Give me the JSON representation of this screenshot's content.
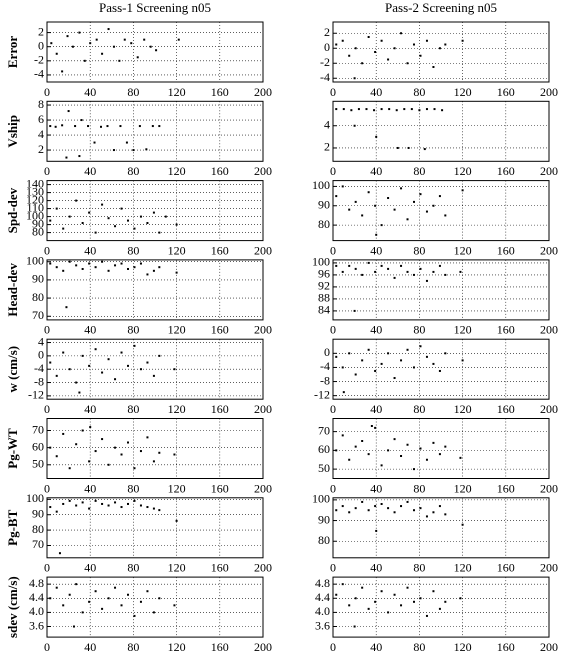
{
  "chart_data": [
    {
      "type": "scatter",
      "title": "Pass-1 Screening n05",
      "ylabel": "Error",
      "xlim": [
        0,
        200
      ],
      "xticks": [
        0,
        40,
        80,
        120,
        160,
        200
      ],
      "ylim": [
        -5,
        3.5
      ],
      "yticks": [
        -4,
        -2,
        0,
        2
      ],
      "grid": true,
      "color": "#000000",
      "x": [
        4,
        9,
        14,
        19,
        24,
        30,
        35,
        40,
        46,
        51,
        57,
        62,
        67,
        72,
        78,
        84,
        90,
        96,
        101,
        122
      ],
      "y": [
        0.5,
        -1,
        -3.5,
        1.5,
        0,
        2,
        -2,
        0.5,
        1,
        -1,
        2.5,
        0,
        -2,
        1,
        0.5,
        -1.5,
        1,
        0,
        -0.5,
        1
      ]
    },
    {
      "type": "scatter",
      "ylabel": "Vship",
      "xlim": [
        0,
        200
      ],
      "xticks": [
        0,
        40,
        80,
        120,
        160,
        200
      ],
      "ylim": [
        0.5,
        8.5
      ],
      "yticks": [
        2,
        4,
        6,
        8
      ],
      "grid": true,
      "color": "#000000",
      "x": [
        3,
        8,
        14,
        20,
        26,
        32,
        38,
        44,
        50,
        56,
        62,
        68,
        74,
        80,
        86,
        92,
        98,
        104,
        18,
        30
      ],
      "y": [
        5.2,
        5.1,
        5.3,
        7.2,
        5.2,
        6,
        5.2,
        3,
        5.1,
        5.2,
        2,
        5.2,
        3,
        2,
        5.2,
        2.1,
        5.2,
        5.2,
        1,
        1.2
      ]
    },
    {
      "type": "scatter",
      "ylabel": "Spd-dev",
      "xlim": [
        0,
        200
      ],
      "xticks": [
        0,
        40,
        80,
        120,
        160,
        200
      ],
      "ylim": [
        70,
        145
      ],
      "yticks": [
        80,
        90,
        100,
        110,
        120,
        130,
        140
      ],
      "grid": true,
      "color": "#000000",
      "x": [
        3,
        9,
        15,
        21,
        27,
        33,
        39,
        45,
        51,
        57,
        63,
        69,
        75,
        81,
        87,
        93,
        99,
        104,
        120,
        110
      ],
      "y": [
        95,
        110,
        85,
        100,
        120,
        92,
        105,
        80,
        115,
        98,
        88,
        110,
        95,
        85,
        100,
        92,
        105,
        80,
        90,
        100
      ]
    },
    {
      "type": "scatter",
      "ylabel": "Head-dev",
      "xlim": [
        0,
        200
      ],
      "xticks": [
        0,
        40,
        80,
        120,
        160,
        200
      ],
      "ylim": [
        68,
        101
      ],
      "yticks": [
        70,
        80,
        90,
        100
      ],
      "grid": true,
      "color": "#000000",
      "x": [
        3,
        9,
        15,
        21,
        27,
        33,
        39,
        45,
        51,
        57,
        63,
        69,
        75,
        81,
        87,
        93,
        99,
        104,
        120,
        18
      ],
      "y": [
        99,
        97,
        95,
        100,
        98,
        96,
        99,
        97,
        100,
        95,
        98,
        99,
        96,
        97,
        99,
        93,
        95,
        97,
        94,
        75
      ]
    },
    {
      "type": "scatter",
      "ylabel": "w (cm/s)",
      "xlim": [
        0,
        200
      ],
      "xticks": [
        0,
        40,
        80,
        120,
        160,
        200
      ],
      "ylim": [
        -13,
        5
      ],
      "yticks": [
        -12,
        -8,
        -4,
        0,
        4
      ],
      "grid": true,
      "color": "#000000",
      "x": [
        3,
        9,
        15,
        21,
        27,
        33,
        39,
        45,
        51,
        57,
        63,
        69,
        75,
        81,
        87,
        93,
        99,
        104,
        118,
        30
      ],
      "y": [
        -2,
        -6,
        1,
        -4,
        -8,
        0,
        -3,
        2,
        -5,
        -1,
        -7,
        1,
        -3,
        3,
        -4,
        -2,
        -6,
        0,
        -4,
        -11
      ]
    },
    {
      "type": "scatter",
      "ylabel": "Pg-WT",
      "xlim": [
        0,
        200
      ],
      "xticks": [
        0,
        40,
        80,
        120,
        160,
        200
      ],
      "ylim": [
        42,
        77
      ],
      "yticks": [
        50,
        60,
        70
      ],
      "grid": true,
      "color": "#000000",
      "x": [
        3,
        9,
        15,
        21,
        27,
        33,
        39,
        45,
        51,
        57,
        63,
        69,
        75,
        81,
        87,
        93,
        99,
        104,
        118,
        40
      ],
      "y": [
        60,
        55,
        68,
        48,
        62,
        70,
        52,
        58,
        65,
        50,
        60,
        56,
        63,
        48,
        58,
        66,
        52,
        57,
        56,
        72
      ]
    },
    {
      "type": "scatter",
      "ylabel": "Pg-BT",
      "xlim": [
        0,
        200
      ],
      "xticks": [
        0,
        40,
        80,
        120,
        160,
        200
      ],
      "ylim": [
        62,
        101
      ],
      "yticks": [
        70,
        80,
        90,
        100
      ],
      "grid": true,
      "color": "#000000",
      "x": [
        3,
        9,
        15,
        21,
        27,
        33,
        39,
        45,
        51,
        57,
        63,
        69,
        75,
        81,
        87,
        93,
        99,
        104,
        120,
        12
      ],
      "y": [
        95,
        92,
        97,
        99,
        96,
        98,
        94,
        99,
        97,
        96,
        98,
        95,
        97,
        99,
        96,
        95,
        94,
        93,
        86,
        65
      ]
    },
    {
      "type": "scatter",
      "ylabel": "sdev (cm/s)",
      "xlim": [
        0,
        200
      ],
      "xticks": [
        0,
        40,
        80,
        120,
        160,
        200
      ],
      "ylim": [
        3.3,
        5
      ],
      "yticks": [
        3.6,
        {
          "value": 4,
          "label": "4.0"
        },
        4.4,
        4.8
      ],
      "grid": true,
      "color": "#000000",
      "x": [
        3,
        9,
        15,
        21,
        27,
        33,
        39,
        45,
        51,
        57,
        63,
        69,
        75,
        81,
        87,
        93,
        99,
        104,
        118,
        25
      ],
      "y": [
        4.4,
        4.7,
        4.2,
        4.5,
        4.8,
        4.0,
        4.3,
        4.6,
        4.1,
        4.4,
        4.7,
        4.2,
        4.5,
        3.9,
        4.3,
        4.6,
        4.0,
        4.4,
        4.2,
        3.6
      ]
    },
    {
      "type": "scatter",
      "title": "Pass-2 Screening n05",
      "xlim": [
        0,
        200
      ],
      "xticks": [
        0,
        40,
        80,
        120,
        160,
        200
      ],
      "ylim": [
        -4.5,
        3.5
      ],
      "yticks": [
        -4,
        -2,
        0,
        2
      ],
      "grid": true,
      "color": "#000000",
      "x": [
        3,
        9,
        15,
        21,
        27,
        33,
        39,
        45,
        51,
        57,
        63,
        69,
        75,
        81,
        87,
        93,
        99,
        104,
        120,
        20
      ],
      "y": [
        0.5,
        1,
        -1,
        0,
        -2,
        1.5,
        -0.5,
        1,
        -1.5,
        0,
        2,
        -2,
        0.5,
        -1,
        1,
        -2.5,
        0,
        0.5,
        1,
        -4
      ]
    },
    {
      "type": "scatter",
      "xlim": [
        0,
        200
      ],
      "xticks": [
        0,
        40,
        80,
        120,
        160,
        200
      ],
      "ylim": [
        0.8,
        6.2
      ],
      "yticks": [
        2,
        4
      ],
      "grid": true,
      "color": "#000000",
      "x": [
        3,
        10,
        17,
        24,
        31,
        38,
        45,
        52,
        59,
        66,
        73,
        80,
        87,
        94,
        101,
        20,
        40,
        60,
        70,
        85
      ],
      "y": [
        5.5,
        5.5,
        5.4,
        5.5,
        5.5,
        5.4,
        5.5,
        5.5,
        5.4,
        5.5,
        5.5,
        5.4,
        5.5,
        5.5,
        5.4,
        4,
        3,
        2,
        2,
        1.9
      ]
    },
    {
      "type": "scatter",
      "xlim": [
        0,
        200
      ],
      "xticks": [
        0,
        40,
        80,
        120,
        160,
        200
      ],
      "ylim": [
        72,
        103
      ],
      "yticks": [
        80,
        90,
        100
      ],
      "grid": true,
      "color": "#000000",
      "x": [
        3,
        9,
        15,
        21,
        27,
        33,
        39,
        45,
        51,
        57,
        63,
        69,
        75,
        81,
        87,
        93,
        99,
        104,
        120,
        40
      ],
      "y": [
        95,
        100,
        88,
        92,
        85,
        97,
        90,
        80,
        94,
        88,
        99,
        83,
        92,
        96,
        87,
        90,
        95,
        85,
        98,
        75
      ]
    },
    {
      "type": "scatter",
      "xlim": [
        0,
        200
      ],
      "xticks": [
        0,
        40,
        80,
        120,
        160,
        200
      ],
      "ylim": [
        81,
        101
      ],
      "yticks": [
        84,
        88,
        92,
        96,
        100
      ],
      "grid": true,
      "color": "#000000",
      "x": [
        3,
        9,
        15,
        21,
        27,
        33,
        39,
        45,
        51,
        57,
        63,
        69,
        75,
        81,
        87,
        93,
        99,
        104,
        118,
        20
      ],
      "y": [
        99,
        97,
        99,
        98,
        96,
        100,
        97,
        99,
        98,
        95,
        99,
        97,
        96,
        98,
        94,
        97,
        99,
        96,
        97,
        84
      ]
    },
    {
      "type": "scatter",
      "xlim": [
        0,
        200
      ],
      "xticks": [
        0,
        40,
        80,
        120,
        160,
        200
      ],
      "ylim": [
        -13,
        4
      ],
      "yticks": [
        -12,
        -8,
        -4,
        0
      ],
      "grid": true,
      "color": "#000000",
      "x": [
        3,
        9,
        15,
        21,
        27,
        33,
        39,
        45,
        51,
        57,
        63,
        69,
        75,
        81,
        87,
        93,
        99,
        104,
        120,
        10
      ],
      "y": [
        -1,
        -4,
        0,
        -6,
        -2,
        1,
        -5,
        -3,
        0,
        -7,
        -2,
        1,
        -4,
        2,
        -1,
        -3,
        -5,
        0,
        -2,
        -11
      ]
    },
    {
      "type": "scatter",
      "xlim": [
        0,
        200
      ],
      "xticks": [
        0,
        40,
        80,
        120,
        160,
        200
      ],
      "ylim": [
        45,
        77
      ],
      "yticks": [
        50,
        60,
        70
      ],
      "grid": true,
      "color": "#000000",
      "x": [
        3,
        9,
        15,
        21,
        27,
        33,
        39,
        45,
        51,
        57,
        63,
        69,
        75,
        81,
        87,
        93,
        99,
        104,
        118,
        36
      ],
      "y": [
        60,
        68,
        55,
        62,
        65,
        58,
        72,
        52,
        60,
        66,
        57,
        63,
        50,
        61,
        55,
        64,
        58,
        62,
        56,
        73
      ]
    },
    {
      "type": "scatter",
      "xlim": [
        0,
        200
      ],
      "xticks": [
        0,
        40,
        80,
        120,
        160,
        200
      ],
      "ylim": [
        72,
        101
      ],
      "yticks": [
        80,
        90,
        100
      ],
      "grid": true,
      "color": "#000000",
      "x": [
        3,
        9,
        15,
        21,
        27,
        33,
        39,
        45,
        51,
        57,
        63,
        69,
        75,
        81,
        87,
        93,
        99,
        104,
        120,
        40
      ],
      "y": [
        95,
        97,
        94,
        96,
        99,
        95,
        97,
        98,
        96,
        94,
        97,
        99,
        95,
        96,
        92,
        94,
        97,
        93,
        88,
        85
      ]
    },
    {
      "type": "scatter",
      "xlim": [
        0,
        200
      ],
      "xticks": [
        0,
        40,
        80,
        120,
        160,
        200
      ],
      "ylim": [
        3.3,
        5
      ],
      "yticks": [
        3.6,
        {
          "value": 4,
          "label": "4.0"
        },
        4.4,
        4.8
      ],
      "grid": true,
      "color": "#000000",
      "x": [
        3,
        9,
        15,
        21,
        27,
        33,
        39,
        45,
        51,
        57,
        63,
        69,
        75,
        81,
        87,
        93,
        99,
        104,
        118,
        20
      ],
      "y": [
        4.5,
        4.8,
        4.2,
        4.4,
        4.7,
        4.1,
        4.3,
        4.6,
        4.0,
        4.5,
        4.2,
        4.7,
        4.3,
        4.4,
        3.9,
        4.6,
        4.1,
        4.3,
        4.4,
        3.6
      ]
    }
  ]
}
